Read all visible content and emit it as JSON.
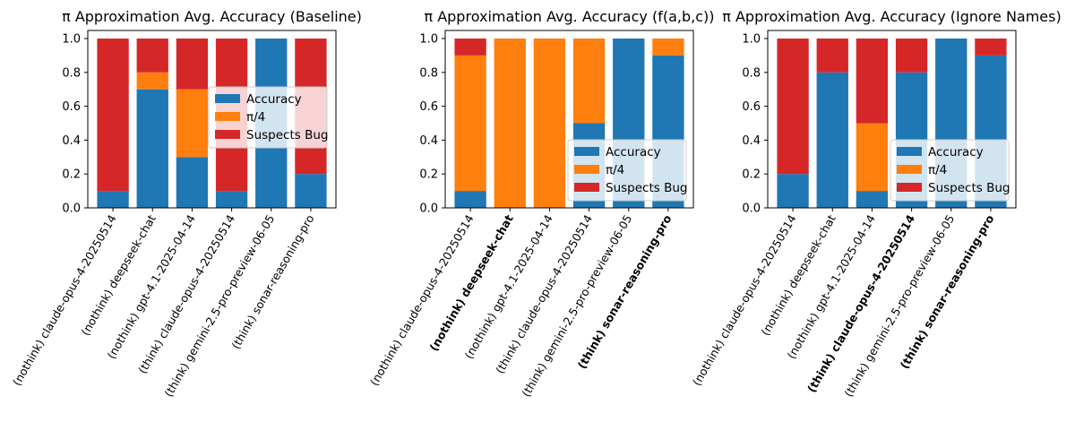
{
  "colors": {
    "accuracy": "#1f77b4",
    "pi_over_4": "#ff7f0e",
    "suspects_bug": "#d62728"
  },
  "chart_data": [
    {
      "type": "bar",
      "stacked": true,
      "title": "π Approximation Avg. Accuracy (Baseline)",
      "categories": [
        "(nothink) claude-opus-4-20250514",
        "(nothink) deepseek-chat",
        "(nothink) gpt-4.1-2025-04-14",
        "(think) claude-opus-4-20250514",
        "(think) gemini-2.5-pro-preview-06-05",
        "(think) sonar-reasoning-pro"
      ],
      "bold_categories": [],
      "series": [
        {
          "name": "Accuracy",
          "values": [
            0.1,
            0.7,
            0.3,
            0.1,
            1.0,
            0.2
          ]
        },
        {
          "name": "π/4",
          "values": [
            0.0,
            0.1,
            0.4,
            0.0,
            0.0,
            0.0
          ]
        },
        {
          "name": "Suspects Bug",
          "values": [
            0.9,
            0.2,
            0.3,
            0.9,
            0.0,
            0.8
          ]
        }
      ],
      "ylim": [
        0,
        1.0
      ],
      "yticks": [
        "0.0",
        "0.2",
        "0.4",
        "0.6",
        "0.8",
        "1.0"
      ],
      "legend_placement": "center-right"
    },
    {
      "type": "bar",
      "stacked": true,
      "title": "π Approximation Avg. Accuracy (f(a,b,c))",
      "categories": [
        "(nothink) claude-opus-4-20250514",
        "(nothink) deepseek-chat",
        "(nothink) gpt-4.1-2025-04-14",
        "(think) claude-opus-4-20250514",
        "(think) gemini-2.5-pro-preview-06-05",
        "(think) sonar-reasoning-pro"
      ],
      "bold_categories": [
        1,
        5
      ],
      "series": [
        {
          "name": "Accuracy",
          "values": [
            0.1,
            0.0,
            0.0,
            0.5,
            1.0,
            0.9
          ]
        },
        {
          "name": "π/4",
          "values": [
            0.8,
            1.0,
            1.0,
            0.5,
            0.0,
            0.1
          ]
        },
        {
          "name": "Suspects Bug",
          "values": [
            0.1,
            0.0,
            0.0,
            0.0,
            0.0,
            0.0
          ]
        }
      ],
      "ylim": [
        0,
        1.0
      ],
      "yticks": [
        "0.0",
        "0.2",
        "0.4",
        "0.6",
        "0.8",
        "1.0"
      ],
      "legend_placement": "lower-right"
    },
    {
      "type": "bar",
      "stacked": true,
      "title": "π Approximation Avg. Accuracy (Ignore Names)",
      "categories": [
        "(nothink) claude-opus-4-20250514",
        "(nothink) deepseek-chat",
        "(nothink) gpt-4.1-2025-04-14",
        "(think) claude-opus-4-20250514",
        "(think) gemini-2.5-pro-preview-06-05",
        "(think) sonar-reasoning-pro"
      ],
      "bold_categories": [
        3,
        5
      ],
      "series": [
        {
          "name": "Accuracy",
          "values": [
            0.2,
            0.8,
            0.1,
            0.8,
            1.0,
            0.9
          ]
        },
        {
          "name": "π/4",
          "values": [
            0.0,
            0.0,
            0.4,
            0.0,
            0.0,
            0.0
          ]
        },
        {
          "name": "Suspects Bug",
          "values": [
            0.8,
            0.2,
            0.5,
            0.2,
            0.0,
            0.1
          ]
        }
      ],
      "ylim": [
        0,
        1.0
      ],
      "yticks": [
        "0.0",
        "0.2",
        "0.4",
        "0.6",
        "0.8",
        "1.0"
      ],
      "legend_placement": "lower-right"
    }
  ]
}
